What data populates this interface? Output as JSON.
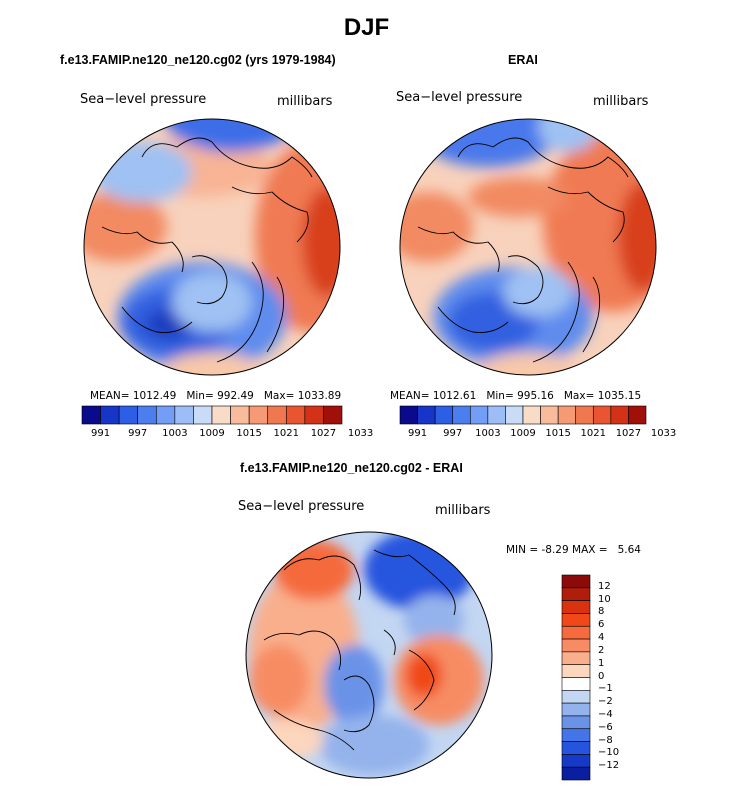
{
  "title": "DJF",
  "panels": {
    "left": {
      "title": "f.e13.FAMIP.ne120_ne120.cg02 (yrs 1979-1984)",
      "variable": "Sea−level pressure",
      "units": "millibars",
      "stats": {
        "mean_label": "MEAN=",
        "mean": "1012.49",
        "min_label": "Min=",
        "min": "992.49",
        "max_label": "Max=",
        "max": "1033.89"
      }
    },
    "right": {
      "title": "ERAI",
      "variable": "Sea−level pressure",
      "units": "millibars",
      "stats": {
        "mean_label": "MEAN=",
        "mean": "1012.61",
        "min_label": "Min=",
        "min": "995.16",
        "max_label": "Max=",
        "max": "1035.15"
      }
    },
    "diff": {
      "title": "f.e13.FAMIP.ne120_ne120.cg02 - ERAI",
      "variable": "Sea−level pressure",
      "units": "millibars",
      "stats": {
        "min_label": "MIN =",
        "min": "-8.29",
        "max_label": "MAX =",
        "max": "5.64"
      }
    }
  },
  "colorbars": {
    "abs_labels": [
      "991",
      "997",
      "1003",
      "1009",
      "1015",
      "1021",
      "1027",
      "1033"
    ],
    "abs_colors": [
      "#0a0a8c",
      "#1536c8",
      "#2c5ee6",
      "#4d7ef0",
      "#739ef5",
      "#9dbdf7",
      "#c8dcf8",
      "#f8dcc8",
      "#f8bc9c",
      "#f59a74",
      "#f07850",
      "#e85530",
      "#d43218",
      "#a01008"
    ],
    "diff_labels": [
      "12",
      "10",
      "8",
      "6",
      "4",
      "2",
      "1",
      "0",
      "−1",
      "−2",
      "−4",
      "−6",
      "−8",
      "−10",
      "−12"
    ],
    "diff_colors": [
      "#8b0a0a",
      "#b01d0a",
      "#d8320f",
      "#f04818",
      "#f56a3e",
      "#f78c64",
      "#f9af8c",
      "#fcd6bd",
      "#ffffff",
      "#c3d6f2",
      "#94b3ec",
      "#6a93e8",
      "#4374e8",
      "#2555de",
      "#163ac8",
      "#0a1ea0"
    ]
  }
}
